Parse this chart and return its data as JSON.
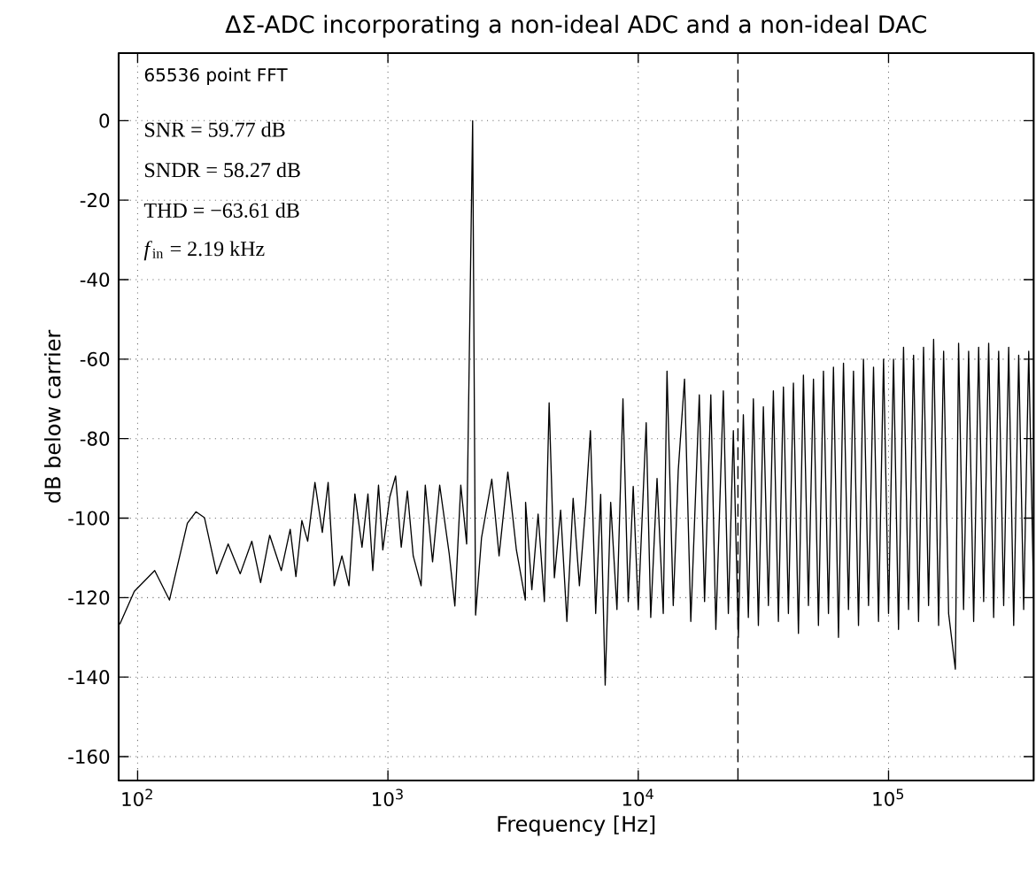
{
  "chart_data": {
    "type": "line",
    "title": "ΔΣ-ADC incorporating a non-ideal ADC and a non-ideal DAC",
    "xlabel": "Frequency [Hz]",
    "ylabel": "dB below carrier",
    "annotations": [
      "65536 point FFT",
      "SNR = 59.77 dB",
      "SNDR = 58.27 dB",
      "THD = −63.61 dB",
      "*f*$_{in}$ = 2.19 kHz"
    ],
    "log": "x",
    "grid": true,
    "xlim": [
      84,
      380000
    ],
    "ylim": [
      -166,
      17
    ],
    "xticks": [
      {
        "value": 100,
        "label": "10$^{2}$"
      },
      {
        "value": 1000,
        "label": "10$^{3}$"
      },
      {
        "value": 10000,
        "label": "10$^{4}$"
      },
      {
        "value": 100000,
        "label": "10$^{5}$"
      }
    ],
    "yticks": [
      -160,
      -140,
      -120,
      -100,
      -80,
      -60,
      -40,
      -20,
      0
    ],
    "ref_lines": [
      {
        "axis": "x",
        "value": 25000,
        "color": "#000000",
        "line_style": "dashed"
      }
    ],
    "series": [
      {
        "color": "#000000",
        "x": [
          85,
          97,
          117,
          134,
          158,
          171,
          185,
          207,
          230,
          257,
          286,
          310,
          337,
          375,
          407,
          429,
          453,
          478,
          511,
          547,
          577,
          610,
          655,
          699,
          738,
          788,
          832,
          870,
          917,
          954,
          1017,
          1073,
          1130,
          1196,
          1262,
          1357,
          1410,
          1508,
          1610,
          1756,
          1851,
          1955,
          2063,
          2180,
          2240,
          2365,
          2600,
          2780,
          3013,
          3260,
          3540,
          3548,
          3758,
          3981,
          4217,
          4406,
          4624,
          4898,
          5188,
          5495,
          5821,
          6166,
          6442,
          6761,
          7079,
          7379,
          7762,
          8222,
          8690,
          9120,
          9550,
          10000,
          10760,
          11220,
          11890,
          12590,
          13030,
          13800,
          14450,
          15310,
          16220,
          17540,
          18410,
          19500,
          20420,
          21880,
          22910,
          23990,
          25120,
          26300,
          27540,
          28840,
          30200,
          31620,
          33110,
          34670,
          36310,
          38020,
          39810,
          41690,
          43650,
          45710,
          47860,
          50120,
          52480,
          54950,
          57540,
          60260,
          63100,
          66070,
          69180,
          72440,
          75860,
          79430,
          83180,
          87100,
          91200,
          95500,
          100000,
          104700,
          109600,
          114800,
          120200,
          125900,
          131800,
          138000,
          144500,
          151400,
          158500,
          166000,
          173800,
          184900,
          190500,
          199500,
          208900,
          218800,
          229100,
          239900,
          251200,
          263000,
          275400,
          288400,
          302000,
          316200,
          331100,
          346700,
          363100,
          380000
        ],
        "values": [
          -126.6,
          -118.4,
          -113.2,
          -120.6,
          -101.3,
          -98.4,
          -99.9,
          -114,
          -106.5,
          -114,
          -105.8,
          -116.2,
          -104.3,
          -113.2,
          -102.8,
          -114.7,
          -100.6,
          -105.8,
          -91,
          -103.6,
          -91,
          -117,
          -109.5,
          -117,
          -93.9,
          -107.3,
          -93.9,
          -113.2,
          -91.7,
          -108,
          -94.7,
          -89.4,
          -107.3,
          -93.2,
          -109.5,
          -117,
          -91.7,
          -111,
          -91.7,
          -108.8,
          -122.1,
          -91.7,
          -106.5,
          0,
          -124.4,
          -105,
          -90.2,
          -109.5,
          -88.4,
          -108,
          -120.6,
          -96,
          -118,
          -99,
          -121,
          -71,
          -115,
          -98,
          -126,
          -95,
          -117,
          -97,
          -78,
          -124,
          -94,
          -142,
          -96,
          -123,
          -70,
          -121,
          -92,
          -123,
          -76,
          -125,
          -90,
          -124,
          -63,
          -122,
          -88,
          -65,
          -126,
          -69,
          -121,
          -69,
          -128,
          -68,
          -124,
          -78,
          -130,
          -74,
          -125,
          -70,
          -127,
          -72,
          -122,
          -68,
          -126,
          -67,
          -124,
          -66,
          -129,
          -64,
          -122,
          -65,
          -127,
          -63,
          -124,
          -62,
          -130,
          -61,
          -123,
          -63,
          -127,
          -60,
          -122,
          -62,
          -126,
          -60,
          -124,
          -60,
          -128,
          -57,
          -123,
          -59,
          -126,
          -57,
          -122,
          -55,
          -127,
          -58,
          -124,
          -138,
          -56,
          -123,
          -58,
          -126,
          -57,
          -121,
          -56,
          -125,
          -58,
          -122,
          -57,
          -127,
          -59,
          -123,
          -58,
          -120
        ]
      }
    ]
  }
}
